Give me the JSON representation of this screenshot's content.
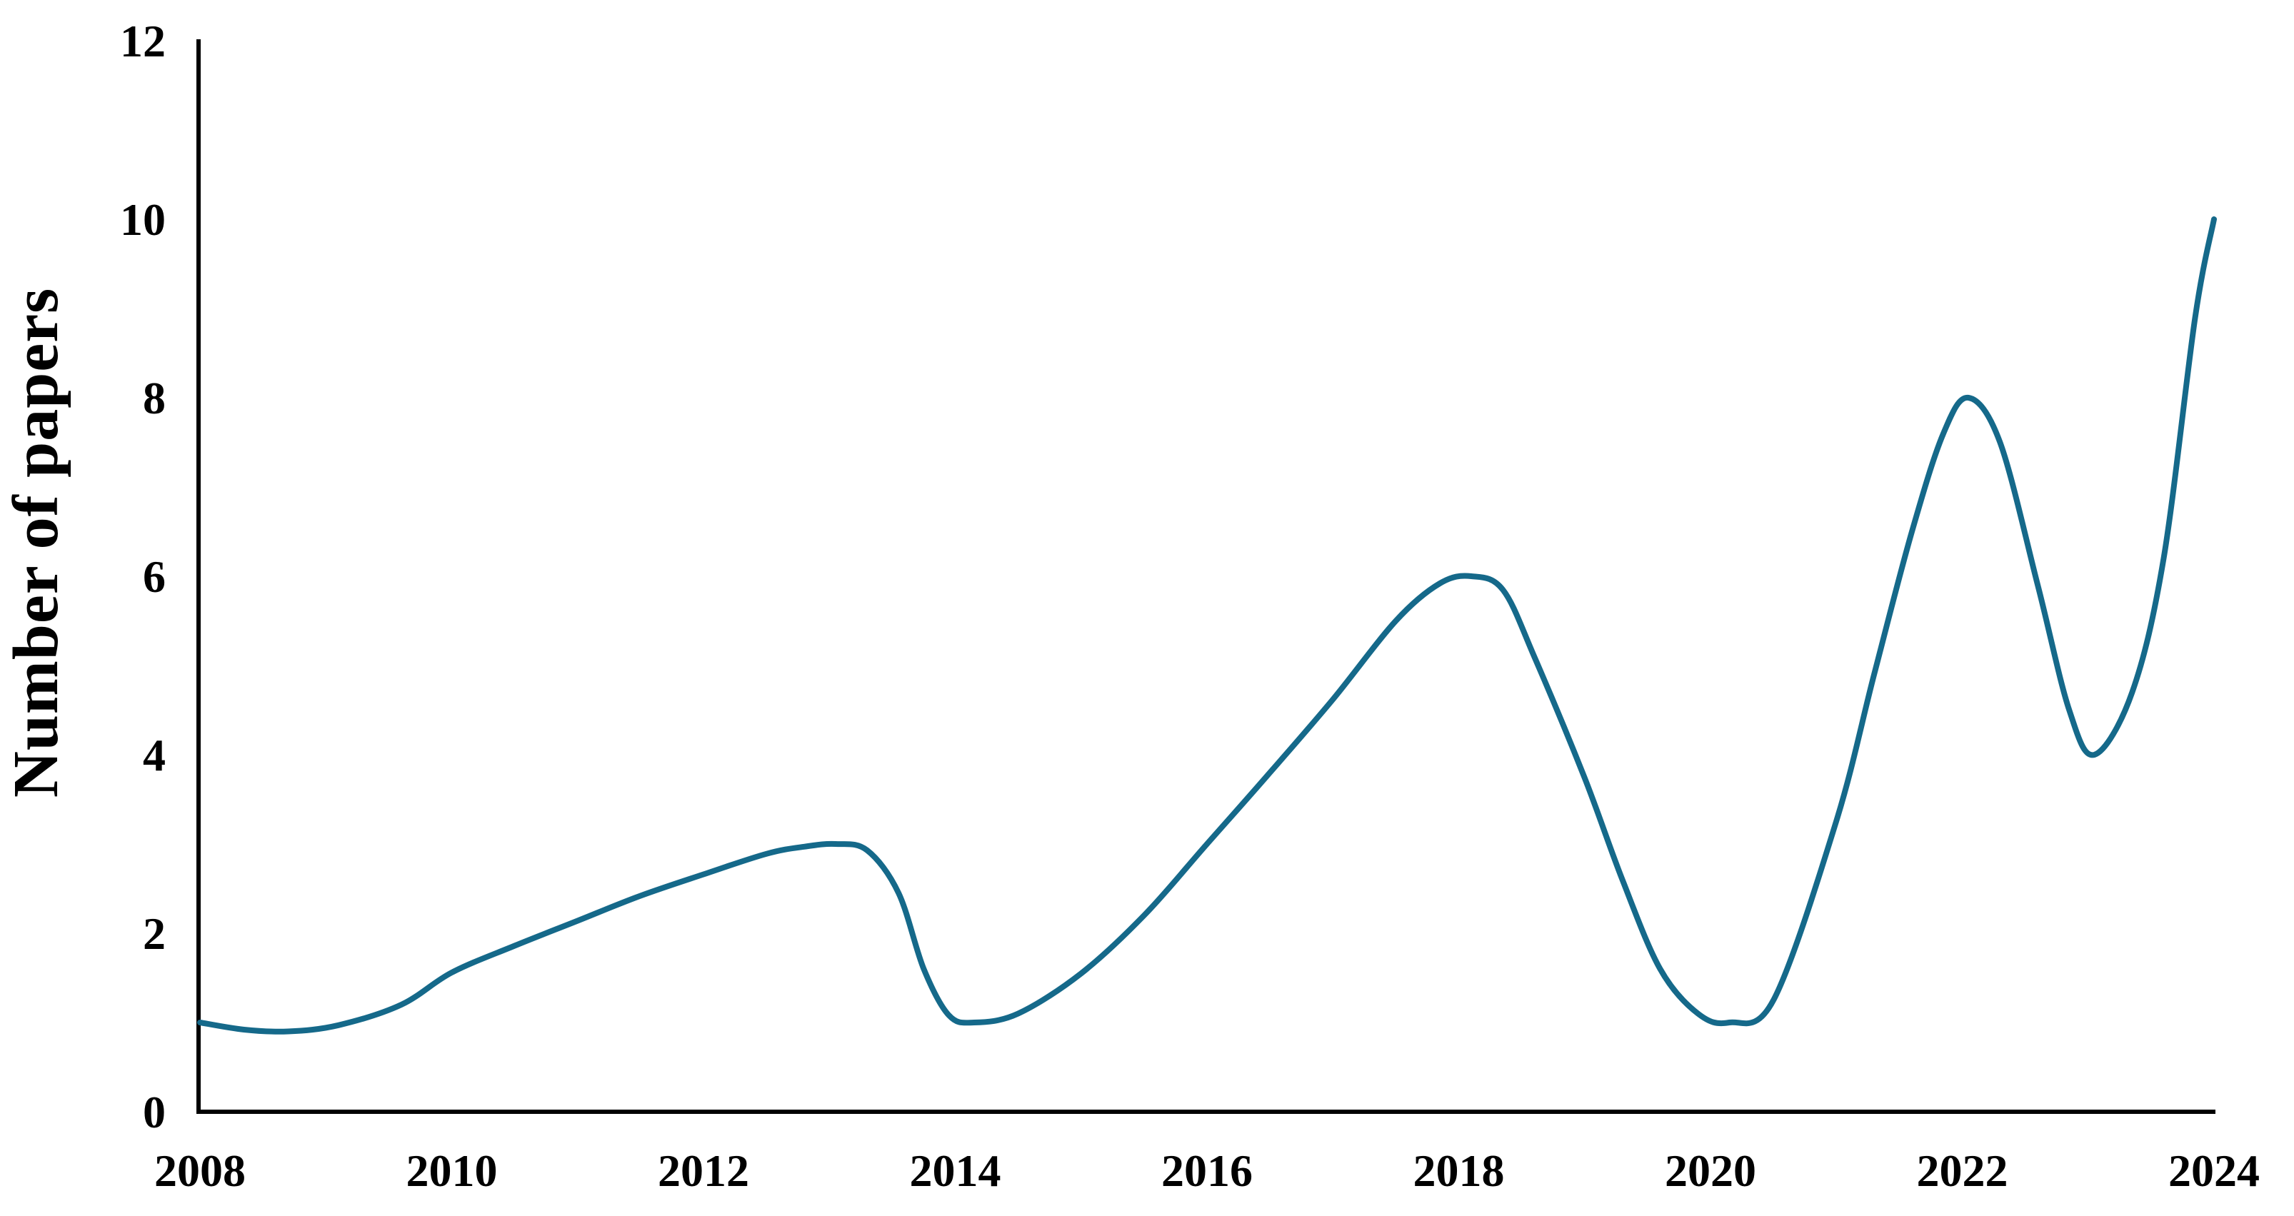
{
  "chart_data": {
    "type": "line",
    "title": "",
    "xlabel": "",
    "ylabel": "Number of papers",
    "x_ticks": [
      2008,
      2010,
      2012,
      2014,
      2016,
      2018,
      2020,
      2022,
      2024
    ],
    "y_ticks": [
      0,
      2,
      4,
      6,
      8,
      10,
      12
    ],
    "xlim": [
      2008,
      2024
    ],
    "ylim": [
      0,
      12
    ],
    "grid": false,
    "legend": false,
    "smoothed": true,
    "line_color": "#15698a",
    "axis_color": "#000000",
    "text_color": "#000000",
    "series": [
      {
        "name": "Number of papers",
        "x": [
          2008,
          2009,
          2010,
          2011,
          2012,
          2013,
          2014,
          2015,
          2016,
          2017,
          2018,
          2019,
          2020,
          2021,
          2022,
          2023,
          2024
        ],
        "values": [
          1.0,
          0.9,
          1.6,
          2.1,
          2.7,
          3.0,
          1.0,
          1.6,
          3.0,
          4.6,
          6.0,
          3.7,
          1.0,
          3.3,
          8.0,
          4.0,
          10.0
        ]
      }
    ],
    "curve_points": [
      [
        2008.0,
        1.0
      ],
      [
        2008.35,
        0.92
      ],
      [
        2008.7,
        0.9
      ],
      [
        2009.1,
        0.97
      ],
      [
        2009.6,
        1.2
      ],
      [
        2010.0,
        1.56
      ],
      [
        2010.5,
        1.86
      ],
      [
        2011.0,
        2.14
      ],
      [
        2011.5,
        2.42
      ],
      [
        2012.0,
        2.66
      ],
      [
        2012.5,
        2.89
      ],
      [
        2012.8,
        2.97
      ],
      [
        2013.05,
        3.0
      ],
      [
        2013.3,
        2.93
      ],
      [
        2013.55,
        2.45
      ],
      [
        2013.75,
        1.6
      ],
      [
        2013.95,
        1.08
      ],
      [
        2014.15,
        1.0
      ],
      [
        2014.5,
        1.1
      ],
      [
        2015.0,
        1.55
      ],
      [
        2015.5,
        2.2
      ],
      [
        2016.0,
        3.0
      ],
      [
        2016.5,
        3.8
      ],
      [
        2017.0,
        4.62
      ],
      [
        2017.5,
        5.5
      ],
      [
        2017.85,
        5.92
      ],
      [
        2018.1,
        6.0
      ],
      [
        2018.35,
        5.85
      ],
      [
        2018.6,
        5.1
      ],
      [
        2019.0,
        3.74
      ],
      [
        2019.3,
        2.6
      ],
      [
        2019.6,
        1.6
      ],
      [
        2019.9,
        1.1
      ],
      [
        2020.15,
        1.0
      ],
      [
        2020.5,
        1.25
      ],
      [
        2021.0,
        3.26
      ],
      [
        2021.3,
        4.9
      ],
      [
        2021.6,
        6.5
      ],
      [
        2021.85,
        7.6
      ],
      [
        2022.05,
        8.0
      ],
      [
        2022.3,
        7.5
      ],
      [
        2022.6,
        5.9
      ],
      [
        2022.85,
        4.5
      ],
      [
        2023.05,
        4.0
      ],
      [
        2023.35,
        4.7
      ],
      [
        2023.6,
        6.2
      ],
      [
        2023.85,
        8.9
      ],
      [
        2024.0,
        10.0
      ]
    ]
  }
}
